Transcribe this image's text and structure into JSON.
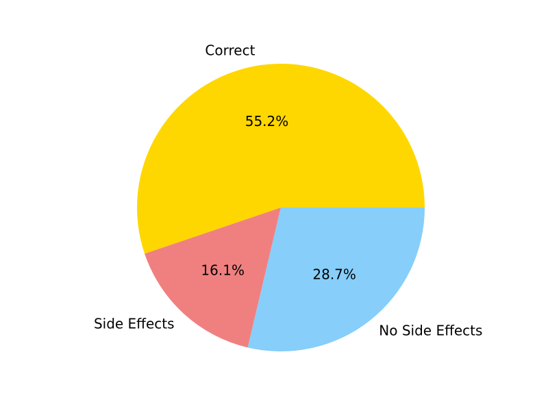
{
  "chart_data": {
    "type": "pie",
    "categories": [
      "Correct",
      "Side Effects",
      "No Side Effects"
    ],
    "values": [
      55.2,
      16.1,
      28.7
    ],
    "value_labels": [
      "55.2%",
      "16.1%",
      "28.7%"
    ],
    "colors": [
      "#FFD700",
      "#F08080",
      "#87CEFA"
    ],
    "start_angle_deg": 0,
    "direction": "counterclockwise",
    "title": "",
    "legend": "none"
  }
}
